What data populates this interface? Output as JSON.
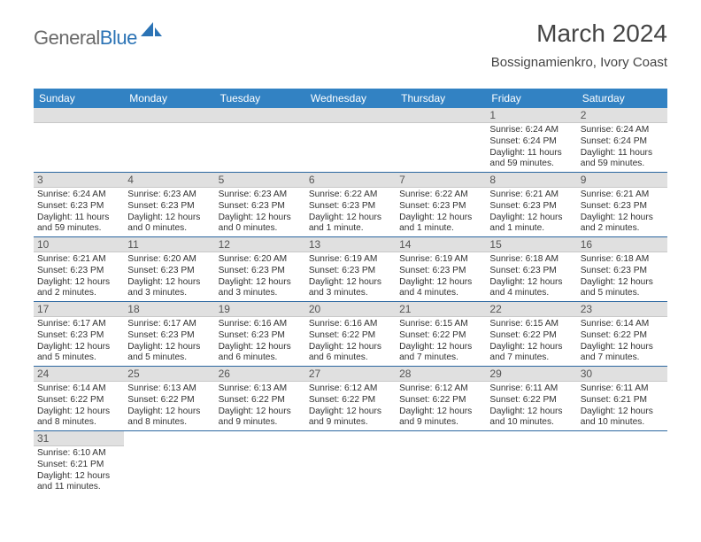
{
  "colors": {
    "header_bg": "#3282c3",
    "header_text": "#ffffff",
    "row_divider": "#2b67a0",
    "daynum_bg": "#e0e0e0",
    "text": "#333333",
    "logo_gray": "#6a6a6a",
    "logo_blue": "#2b73b5"
  },
  "logo": {
    "part1": "General",
    "part2": "Blue"
  },
  "title": "March 2024",
  "subtitle": "Bossignamienkro, Ivory Coast",
  "weekdays": [
    "Sunday",
    "Monday",
    "Tuesday",
    "Wednesday",
    "Thursday",
    "Friday",
    "Saturday"
  ],
  "weeks": [
    [
      {
        "blank": true
      },
      {
        "blank": true
      },
      {
        "blank": true
      },
      {
        "blank": true
      },
      {
        "blank": true
      },
      {
        "day": "1",
        "sunrise": "Sunrise: 6:24 AM",
        "sunset": "Sunset: 6:24 PM",
        "daylight": "Daylight: 11 hours and 59 minutes."
      },
      {
        "day": "2",
        "sunrise": "Sunrise: 6:24 AM",
        "sunset": "Sunset: 6:24 PM",
        "daylight": "Daylight: 11 hours and 59 minutes."
      }
    ],
    [
      {
        "day": "3",
        "sunrise": "Sunrise: 6:24 AM",
        "sunset": "Sunset: 6:23 PM",
        "daylight": "Daylight: 11 hours and 59 minutes."
      },
      {
        "day": "4",
        "sunrise": "Sunrise: 6:23 AM",
        "sunset": "Sunset: 6:23 PM",
        "daylight": "Daylight: 12 hours and 0 minutes."
      },
      {
        "day": "5",
        "sunrise": "Sunrise: 6:23 AM",
        "sunset": "Sunset: 6:23 PM",
        "daylight": "Daylight: 12 hours and 0 minutes."
      },
      {
        "day": "6",
        "sunrise": "Sunrise: 6:22 AM",
        "sunset": "Sunset: 6:23 PM",
        "daylight": "Daylight: 12 hours and 1 minute."
      },
      {
        "day": "7",
        "sunrise": "Sunrise: 6:22 AM",
        "sunset": "Sunset: 6:23 PM",
        "daylight": "Daylight: 12 hours and 1 minute."
      },
      {
        "day": "8",
        "sunrise": "Sunrise: 6:21 AM",
        "sunset": "Sunset: 6:23 PM",
        "daylight": "Daylight: 12 hours and 1 minute."
      },
      {
        "day": "9",
        "sunrise": "Sunrise: 6:21 AM",
        "sunset": "Sunset: 6:23 PM",
        "daylight": "Daylight: 12 hours and 2 minutes."
      }
    ],
    [
      {
        "day": "10",
        "sunrise": "Sunrise: 6:21 AM",
        "sunset": "Sunset: 6:23 PM",
        "daylight": "Daylight: 12 hours and 2 minutes."
      },
      {
        "day": "11",
        "sunrise": "Sunrise: 6:20 AM",
        "sunset": "Sunset: 6:23 PM",
        "daylight": "Daylight: 12 hours and 3 minutes."
      },
      {
        "day": "12",
        "sunrise": "Sunrise: 6:20 AM",
        "sunset": "Sunset: 6:23 PM",
        "daylight": "Daylight: 12 hours and 3 minutes."
      },
      {
        "day": "13",
        "sunrise": "Sunrise: 6:19 AM",
        "sunset": "Sunset: 6:23 PM",
        "daylight": "Daylight: 12 hours and 3 minutes."
      },
      {
        "day": "14",
        "sunrise": "Sunrise: 6:19 AM",
        "sunset": "Sunset: 6:23 PM",
        "daylight": "Daylight: 12 hours and 4 minutes."
      },
      {
        "day": "15",
        "sunrise": "Sunrise: 6:18 AM",
        "sunset": "Sunset: 6:23 PM",
        "daylight": "Daylight: 12 hours and 4 minutes."
      },
      {
        "day": "16",
        "sunrise": "Sunrise: 6:18 AM",
        "sunset": "Sunset: 6:23 PM",
        "daylight": "Daylight: 12 hours and 5 minutes."
      }
    ],
    [
      {
        "day": "17",
        "sunrise": "Sunrise: 6:17 AM",
        "sunset": "Sunset: 6:23 PM",
        "daylight": "Daylight: 12 hours and 5 minutes."
      },
      {
        "day": "18",
        "sunrise": "Sunrise: 6:17 AM",
        "sunset": "Sunset: 6:23 PM",
        "daylight": "Daylight: 12 hours and 5 minutes."
      },
      {
        "day": "19",
        "sunrise": "Sunrise: 6:16 AM",
        "sunset": "Sunset: 6:23 PM",
        "daylight": "Daylight: 12 hours and 6 minutes."
      },
      {
        "day": "20",
        "sunrise": "Sunrise: 6:16 AM",
        "sunset": "Sunset: 6:22 PM",
        "daylight": "Daylight: 12 hours and 6 minutes."
      },
      {
        "day": "21",
        "sunrise": "Sunrise: 6:15 AM",
        "sunset": "Sunset: 6:22 PM",
        "daylight": "Daylight: 12 hours and 7 minutes."
      },
      {
        "day": "22",
        "sunrise": "Sunrise: 6:15 AM",
        "sunset": "Sunset: 6:22 PM",
        "daylight": "Daylight: 12 hours and 7 minutes."
      },
      {
        "day": "23",
        "sunrise": "Sunrise: 6:14 AM",
        "sunset": "Sunset: 6:22 PM",
        "daylight": "Daylight: 12 hours and 7 minutes."
      }
    ],
    [
      {
        "day": "24",
        "sunrise": "Sunrise: 6:14 AM",
        "sunset": "Sunset: 6:22 PM",
        "daylight": "Daylight: 12 hours and 8 minutes."
      },
      {
        "day": "25",
        "sunrise": "Sunrise: 6:13 AM",
        "sunset": "Sunset: 6:22 PM",
        "daylight": "Daylight: 12 hours and 8 minutes."
      },
      {
        "day": "26",
        "sunrise": "Sunrise: 6:13 AM",
        "sunset": "Sunset: 6:22 PM",
        "daylight": "Daylight: 12 hours and 9 minutes."
      },
      {
        "day": "27",
        "sunrise": "Sunrise: 6:12 AM",
        "sunset": "Sunset: 6:22 PM",
        "daylight": "Daylight: 12 hours and 9 minutes."
      },
      {
        "day": "28",
        "sunrise": "Sunrise: 6:12 AM",
        "sunset": "Sunset: 6:22 PM",
        "daylight": "Daylight: 12 hours and 9 minutes."
      },
      {
        "day": "29",
        "sunrise": "Sunrise: 6:11 AM",
        "sunset": "Sunset: 6:22 PM",
        "daylight": "Daylight: 12 hours and 10 minutes."
      },
      {
        "day": "30",
        "sunrise": "Sunrise: 6:11 AM",
        "sunset": "Sunset: 6:21 PM",
        "daylight": "Daylight: 12 hours and 10 minutes."
      }
    ],
    [
      {
        "day": "31",
        "sunrise": "Sunrise: 6:10 AM",
        "sunset": "Sunset: 6:21 PM",
        "daylight": "Daylight: 12 hours and 11 minutes."
      },
      {
        "blank": true
      },
      {
        "blank": true
      },
      {
        "blank": true
      },
      {
        "blank": true
      },
      {
        "blank": true
      },
      {
        "blank": true
      }
    ]
  ]
}
